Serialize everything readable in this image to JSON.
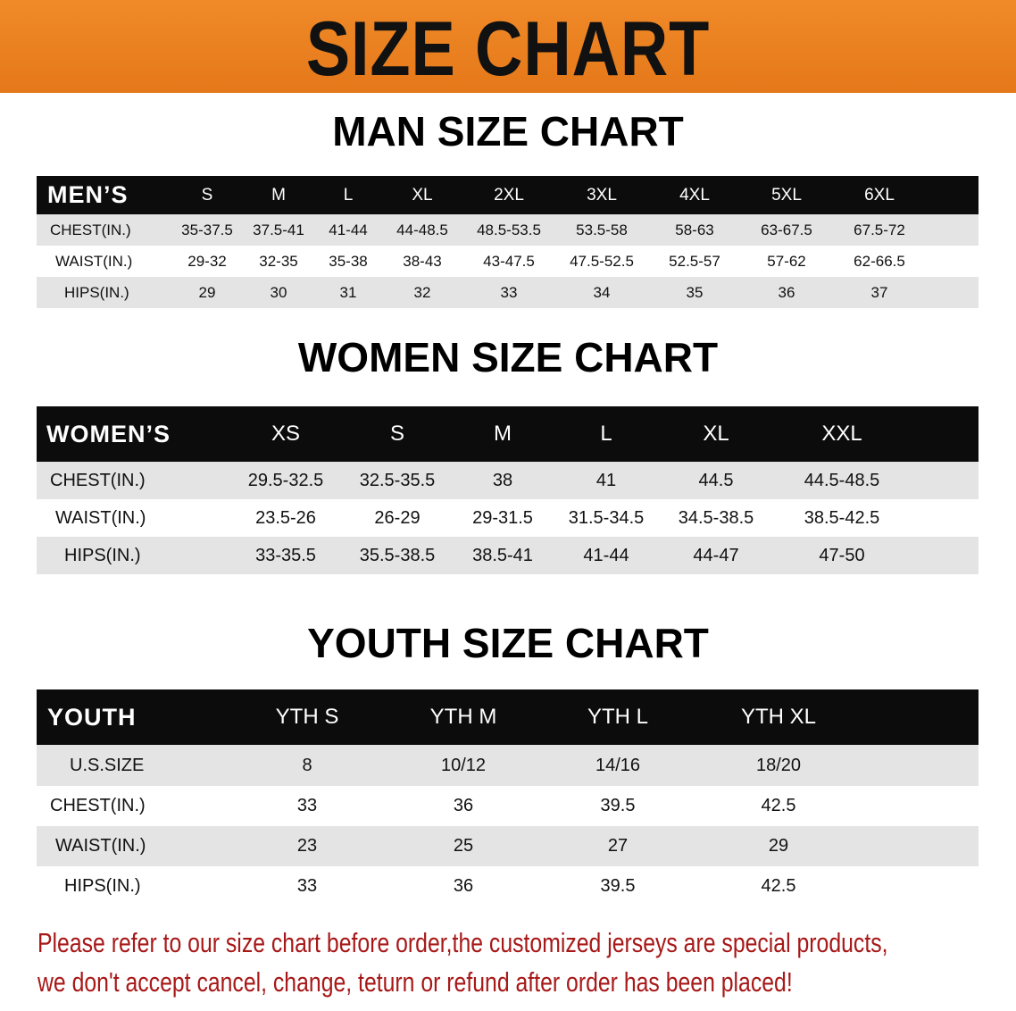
{
  "banner": {
    "title": "SIZE CHART",
    "color": "#ec8224"
  },
  "tables": [
    {
      "title": "MAN SIZE CHART",
      "header_label": "MEN’S",
      "columns": [
        "S",
        "M",
        "L",
        "XL",
        "2XL",
        "3XL",
        "4XL",
        "5XL",
        "6XL"
      ],
      "rows": [
        {
          "label": "CHEST(IN.)",
          "values": [
            "35-37.5",
            "37.5-41",
            "41-44",
            "44-48.5",
            "48.5-53.5",
            "53.5-58",
            "58-63",
            "63-67.5",
            "67.5-72"
          ]
        },
        {
          "label": "WAIST(IN.)",
          "values": [
            "29-32",
            "32-35",
            "35-38",
            "38-43",
            "43-47.5",
            "47.5-52.5",
            "52.5-57",
            "57-62",
            "62-66.5"
          ]
        },
        {
          "label": "HIPS(IN.)",
          "values": [
            "29",
            "30",
            "31",
            "32",
            "33",
            "34",
            "35",
            "36",
            "37"
          ]
        }
      ]
    },
    {
      "title": "WOMEN SIZE CHART",
      "header_label": "WOMEN’S",
      "columns": [
        "XS",
        "S",
        "M",
        "L",
        "XL",
        "XXL"
      ],
      "rows": [
        {
          "label": "CHEST(IN.)",
          "values": [
            "29.5-32.5",
            "32.5-35.5",
            "38",
            "41",
            "44.5",
            "44.5-48.5"
          ]
        },
        {
          "label": "WAIST(IN.)",
          "values": [
            "23.5-26",
            "26-29",
            "29-31.5",
            "31.5-34.5",
            "34.5-38.5",
            "38.5-42.5"
          ]
        },
        {
          "label": "HIPS(IN.)",
          "values": [
            "33-35.5",
            "35.5-38.5",
            "38.5-41",
            "41-44",
            "44-47",
            "47-50"
          ]
        }
      ]
    },
    {
      "title": "YOUTH SIZE CHART",
      "header_label": "YOUTH",
      "columns": [
        "YTH S",
        "YTH M",
        "YTH L",
        "YTH XL"
      ],
      "rows": [
        {
          "label": "U.S.SIZE",
          "values": [
            "8",
            "10/12",
            "14/16",
            "18/20"
          ]
        },
        {
          "label": "CHEST(IN.)",
          "values": [
            "33",
            "36",
            "39.5",
            "42.5"
          ]
        },
        {
          "label": "WAIST(IN.)",
          "values": [
            "23",
            "25",
            "27",
            "29"
          ]
        },
        {
          "label": "HIPS(IN.)",
          "values": [
            "33",
            "36",
            "39.5",
            "42.5"
          ]
        }
      ]
    }
  ],
  "footnote": {
    "line1": "Please refer to our size chart before order,the customized jerseys are special products,",
    "line2": "we don't accept cancel, change, teturn or refund after order has been placed!",
    "color": "#a81818"
  }
}
